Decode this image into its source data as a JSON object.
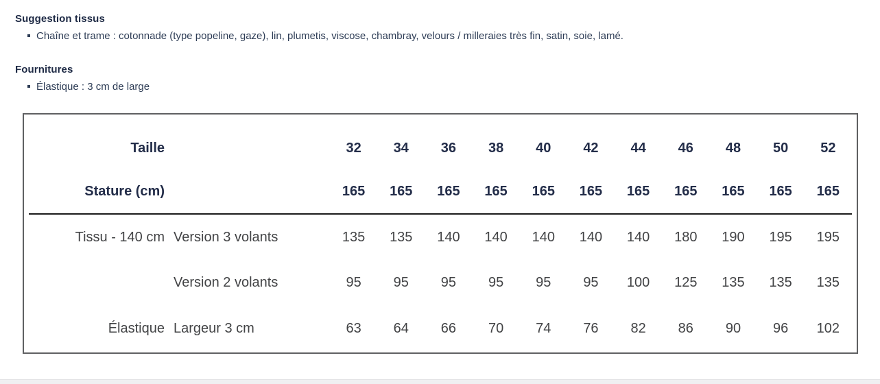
{
  "sections": [
    {
      "heading": "Suggestion tissus",
      "bullet": "Chaîne et trame : cotonnade (type popeline, gaze), lin, plumetis, viscose, chambray, velours / milleraies très fin, satin, soie, lamé."
    },
    {
      "heading": "Fournitures",
      "bullet": "Élastique : 3 cm de large"
    }
  ],
  "size_table": {
    "header_rows": [
      {
        "label": "Taille",
        "sublabel": "",
        "values": [
          "32",
          "34",
          "36",
          "38",
          "40",
          "42",
          "44",
          "46",
          "48",
          "50",
          "52"
        ]
      },
      {
        "label": "Stature (cm)",
        "sublabel": "",
        "values": [
          "165",
          "165",
          "165",
          "165",
          "165",
          "165",
          "165",
          "165",
          "165",
          "165",
          "165"
        ]
      }
    ],
    "body_rows": [
      {
        "label": "Tissu - 140 cm",
        "sublabel": "Version 3 volants",
        "values": [
          "135",
          "135",
          "140",
          "140",
          "140",
          "140",
          "140",
          "180",
          "190",
          "195",
          "195"
        ]
      },
      {
        "label": "",
        "sublabel": "Version 2 volants",
        "values": [
          "95",
          "95",
          "95",
          "95",
          "95",
          "95",
          "100",
          "125",
          "135",
          "135",
          "135"
        ]
      },
      {
        "label": "Élastique",
        "sublabel": "Largeur 3 cm",
        "values": [
          "63",
          "64",
          "66",
          "70",
          "74",
          "76",
          "82",
          "86",
          "90",
          "96",
          "102"
        ]
      }
    ]
  },
  "colors": {
    "heading_text": "#1e2a45",
    "bullet_text": "#2d3c55",
    "table_header_text": "#232d49",
    "table_body_text": "#424345",
    "table_border": "#5f6062",
    "header_rule": "#1b1b1b",
    "bottom_strip": "#f0f0f2"
  }
}
